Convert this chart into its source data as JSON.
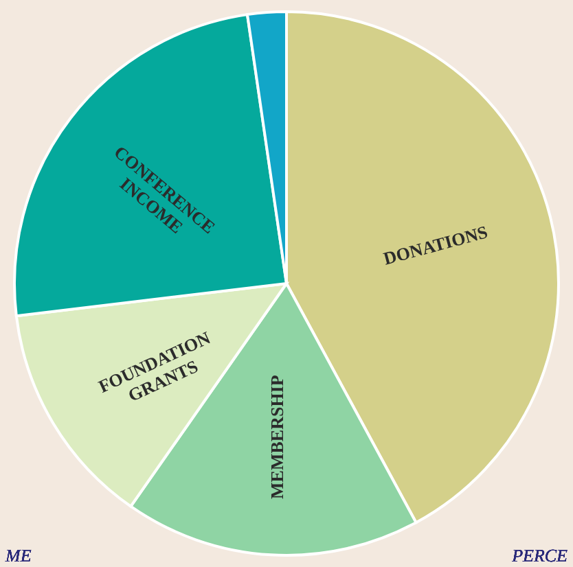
{
  "chart_data": {
    "type": "pie",
    "categories": [
      "DONATIONS",
      "MEMBERSHIP",
      "FOUNDATION GRANTS",
      "CONFERENCE INCOME",
      null
    ],
    "values": [
      42.1,
      17.6,
      13.4,
      24.6,
      2.3
    ],
    "colors": [
      "#d4d08a",
      "#8fd4a4",
      "#dcecc0",
      "#05a99c",
      "#12a6c8"
    ],
    "annotations": [
      "ME",
      "PERCE"
    ]
  }
}
